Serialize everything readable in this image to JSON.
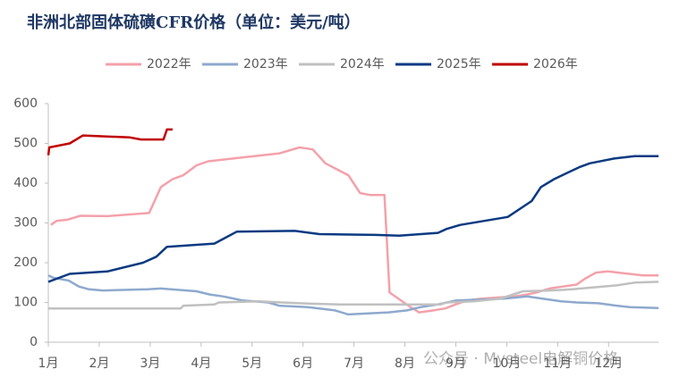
{
  "chart_data": {
    "type": "line",
    "title": "非洲北部固体硫磺CFR价格（单位：美元/吨）",
    "watermark": "公众号 · Mysteel电解铜价格",
    "xlim": [
      1,
      12.98
    ],
    "ylim": [
      0,
      600
    ],
    "yticks": [
      0,
      100,
      200,
      300,
      400,
      500,
      600
    ],
    "xticks": [
      {
        "value": 1,
        "label": "1月"
      },
      {
        "value": 2,
        "label": "2月"
      },
      {
        "value": 3,
        "label": "3月"
      },
      {
        "value": 4,
        "label": "4月"
      },
      {
        "value": 5,
        "label": "5月"
      },
      {
        "value": 6,
        "label": "6月"
      },
      {
        "value": 7,
        "label": "7月"
      },
      {
        "value": 8,
        "label": "8月"
      },
      {
        "value": 9,
        "label": "9月"
      },
      {
        "value": 10,
        "label": "10月"
      },
      {
        "value": 11,
        "label": "11月"
      },
      {
        "value": 12,
        "label": "12月"
      }
    ],
    "grid": false,
    "legend": "top",
    "series": [
      {
        "name": "2022年",
        "color": "#f4a1aa",
        "x": [
          1.05,
          1.16,
          1.37,
          1.63,
          2.16,
          2.98,
          3.21,
          3.44,
          3.65,
          3.91,
          4.14,
          4.82,
          5.54,
          5.93,
          6.19,
          6.44,
          6.89,
          7.12,
          7.33,
          7.6,
          7.7,
          8.09,
          8.28,
          8.56,
          8.79,
          9.0,
          9.21,
          9.53,
          10.14,
          10.4,
          10.58,
          10.84,
          11.1,
          11.37,
          11.54,
          11.75,
          11.98,
          12.68,
          12.98
        ],
        "values": [
          295,
          305,
          308,
          318,
          317,
          325,
          390,
          410,
          420,
          445,
          455,
          465,
          475,
          490,
          485,
          450,
          420,
          375,
          370,
          370,
          125,
          90,
          75,
          80,
          85,
          95,
          105,
          110,
          115,
          120,
          125,
          135,
          140,
          145,
          160,
          175,
          178,
          168,
          168
        ]
      },
      {
        "name": "2023年",
        "color": "#8ea9cd",
        "x": [
          1.0,
          1.1,
          1.4,
          1.6,
          1.8,
          2.07,
          2.95,
          3.21,
          3.91,
          4.17,
          4.44,
          4.82,
          5.32,
          5.53,
          6.1,
          6.63,
          6.89,
          7.68,
          8.04,
          8.3,
          8.65,
          9.0,
          9.7,
          9.96,
          10.4,
          11.07,
          11.37,
          11.8,
          12.16,
          12.42,
          12.98
        ],
        "values": [
          168,
          162,
          155,
          140,
          133,
          130,
          133,
          135,
          128,
          120,
          115,
          105,
          100,
          92,
          88,
          80,
          70,
          75,
          80,
          88,
          95,
          105,
          108,
          110,
          115,
          103,
          100,
          98,
          92,
          88,
          86
        ]
      },
      {
        "name": "2024年",
        "color": "#c0c0c0",
        "x": [
          1.0,
          3.6,
          3.65,
          4.26,
          4.35,
          5.14,
          5.58,
          6.1,
          6.72,
          8.7,
          8.82,
          9.35,
          9.88,
          10.32,
          10.84,
          11.28,
          12.16,
          12.51,
          12.98
        ],
        "values": [
          85,
          85,
          92,
          95,
          100,
          103,
          100,
          97,
          95,
          95,
          100,
          103,
          110,
          128,
          130,
          133,
          143,
          150,
          152
        ]
      },
      {
        "name": "2025年",
        "color": "#0b3a82",
        "x": [
          1.0,
          1.42,
          2.16,
          2.86,
          3.12,
          3.33,
          4.26,
          4.7,
          5.84,
          6.32,
          7.42,
          7.89,
          8.65,
          8.82,
          9.09,
          10.02,
          10.49,
          10.67,
          10.93,
          11.42,
          11.63,
          12.11,
          12.51,
          12.98
        ],
        "values": [
          152,
          172,
          178,
          200,
          215,
          240,
          248,
          278,
          280,
          272,
          270,
          268,
          275,
          285,
          295,
          315,
          355,
          390,
          410,
          440,
          450,
          462,
          468,
          468
        ]
      },
      {
        "name": "2026年",
        "color": "#c00000",
        "x": [
          1.0,
          1.02,
          1.42,
          1.68,
          2.6,
          2.82,
          3.26,
          3.33,
          3.44
        ],
        "values": [
          470,
          490,
          500,
          520,
          515,
          510,
          510,
          535,
          535
        ]
      }
    ]
  }
}
